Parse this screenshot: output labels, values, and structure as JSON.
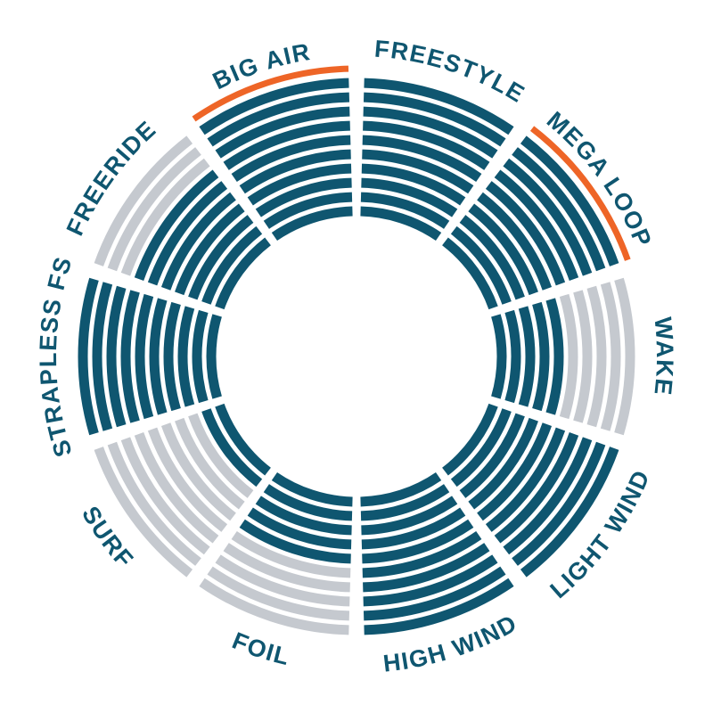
{
  "chart_data": {
    "type": "radial-rating",
    "max_level": 10,
    "categories": [
      {
        "label": "FREESTYLE",
        "level": 10,
        "highlight": false
      },
      {
        "label": "MEGA LOOP",
        "level": 10,
        "highlight": true
      },
      {
        "label": "WAKE",
        "level": 5,
        "highlight": false
      },
      {
        "label": "LIGHT WIND",
        "level": 10,
        "highlight": false
      },
      {
        "label": "HIGH WIND",
        "level": 10,
        "highlight": false
      },
      {
        "label": "FOIL",
        "level": 5,
        "highlight": false
      },
      {
        "label": "SURF",
        "level": 2,
        "highlight": false
      },
      {
        "label": "STRAPLESS FS",
        "level": 10,
        "highlight": false
      },
      {
        "label": "FREERIDE",
        "level": 7,
        "highlight": false
      },
      {
        "label": "BIG AIR",
        "level": 10,
        "highlight": true
      }
    ]
  },
  "colors": {
    "filled": "#0f5670",
    "empty": "#c5c9cf",
    "highlight": "#ee6527",
    "label": "#0f5670",
    "background": "#ffffff"
  }
}
